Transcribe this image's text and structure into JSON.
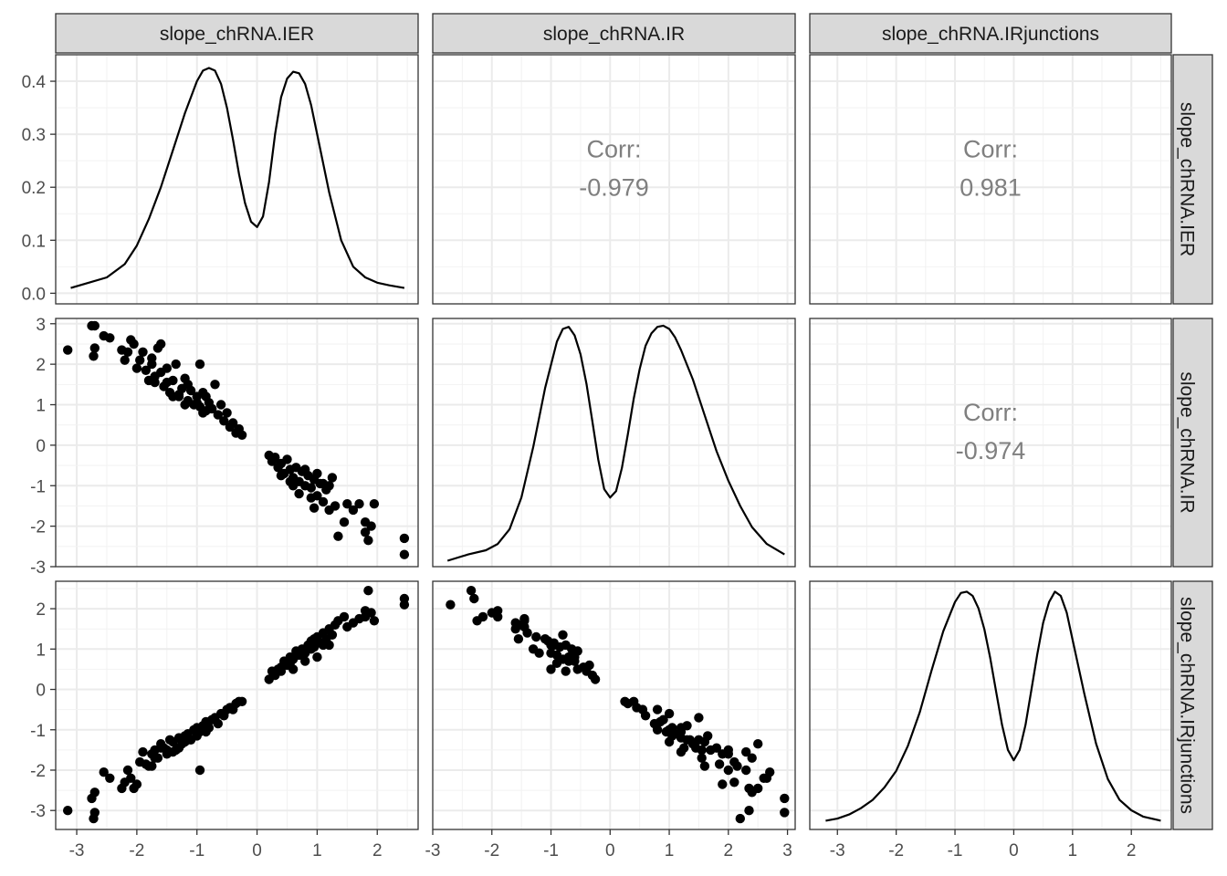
{
  "variables": [
    "slope_chRNA.IER",
    "slope_chRNA.IR",
    "slope_chRNA.IRjunctions"
  ],
  "chart_data": {
    "type": "scatter",
    "subtype": "pairs-matrix",
    "grid": true,
    "density_y_ticks": [
      0.0,
      0.1,
      0.2,
      0.3,
      0.4
    ],
    "density_y_tick_labels": [
      "0.0",
      "0.1",
      "0.2",
      "0.3",
      "0.4"
    ],
    "columns": [
      {
        "name": "slope_chRNA.IER",
        "xlim": [
          -3.35,
          2.68
        ],
        "x_ticks": [
          -3,
          -2,
          -1,
          0,
          1,
          2
        ],
        "x_tick_labels": [
          "-3",
          "-2",
          "-1",
          "0",
          "1",
          "2"
        ]
      },
      {
        "name": "slope_chRNA.IR",
        "xlim": [
          -3.0,
          3.13
        ],
        "x_ticks": [
          -3,
          -2,
          -1,
          0,
          1,
          2,
          3
        ],
        "x_tick_labels": [
          "-3",
          "-2",
          "-1",
          "0",
          "1",
          "2",
          "3"
        ]
      },
      {
        "name": "slope_chRNA.IRjunctions",
        "xlim": [
          -3.47,
          2.68
        ],
        "x_ticks": [
          -3,
          -2,
          -1,
          0,
          1,
          2
        ],
        "x_tick_labels": [
          "-3",
          "-2",
          "-1",
          "0",
          "1",
          "2"
        ]
      }
    ],
    "rows": [
      {
        "name": "slope_chRNA.IER",
        "ylim": [
          -0.02,
          0.45
        ]
      },
      {
        "name": "slope_chRNA.IR",
        "ylim": [
          -3.0,
          3.13
        ],
        "y_ticks": [
          -3,
          -2,
          -1,
          0,
          1,
          2,
          3
        ],
        "y_tick_labels": [
          "-3",
          "-2",
          "-1",
          "0",
          "1",
          "2",
          "3"
        ]
      },
      {
        "name": "slope_chRNA.IRjunctions",
        "ylim": [
          -3.47,
          2.68
        ],
        "y_ticks": [
          -3,
          -2,
          -1,
          0,
          1,
          2
        ],
        "y_tick_labels": [
          "-3",
          "-2",
          "-1",
          "0",
          "1",
          "2"
        ]
      }
    ],
    "densities": [
      {
        "variable": "slope_chRNA.IER",
        "ylim": [
          -0.02,
          0.45
        ],
        "x": [
          -3.1,
          -2.8,
          -2.5,
          -2.2,
          -2.0,
          -1.8,
          -1.6,
          -1.4,
          -1.2,
          -1.0,
          -0.9,
          -0.8,
          -0.7,
          -0.6,
          -0.5,
          -0.4,
          -0.3,
          -0.2,
          -0.1,
          0.0,
          0.1,
          0.2,
          0.3,
          0.4,
          0.5,
          0.6,
          0.7,
          0.8,
          0.9,
          1.0,
          1.2,
          1.4,
          1.6,
          1.8,
          2.0,
          2.2,
          2.45
        ],
        "y": [
          0.01,
          0.02,
          0.03,
          0.055,
          0.09,
          0.14,
          0.2,
          0.27,
          0.34,
          0.4,
          0.42,
          0.425,
          0.42,
          0.395,
          0.35,
          0.29,
          0.225,
          0.17,
          0.135,
          0.125,
          0.145,
          0.21,
          0.3,
          0.37,
          0.405,
          0.418,
          0.415,
          0.395,
          0.355,
          0.3,
          0.19,
          0.1,
          0.05,
          0.03,
          0.02,
          0.015,
          0.01
        ]
      },
      {
        "variable": "slope_chRNA.IR",
        "ylim": [
          -2.74,
          3.15
        ],
        "x": [
          -2.75,
          -2.4,
          -2.1,
          -1.9,
          -1.7,
          -1.5,
          -1.3,
          -1.1,
          -0.9,
          -0.8,
          -0.7,
          -0.6,
          -0.5,
          -0.4,
          -0.3,
          -0.2,
          -0.1,
          0.0,
          0.1,
          0.2,
          0.3,
          0.4,
          0.5,
          0.6,
          0.7,
          0.8,
          0.9,
          1.0,
          1.1,
          1.2,
          1.4,
          1.6,
          1.8,
          2.0,
          2.2,
          2.4,
          2.65,
          2.95
        ],
        "y": [
          -2.6,
          -2.45,
          -2.35,
          -2.2,
          -1.85,
          -1.1,
          0.1,
          1.5,
          2.6,
          2.9,
          2.95,
          2.75,
          2.3,
          1.6,
          0.7,
          -0.2,
          -0.9,
          -1.1,
          -0.95,
          -0.4,
          0.4,
          1.25,
          1.95,
          2.5,
          2.8,
          2.95,
          2.98,
          2.9,
          2.7,
          2.4,
          1.7,
          0.85,
          0.0,
          -0.7,
          -1.3,
          -1.8,
          -2.2,
          -2.45
        ]
      },
      {
        "variable": "slope_chRNA.IRjunctions",
        "ylim": [
          -3.26,
          2.7
        ],
        "x": [
          -3.2,
          -3.0,
          -2.8,
          -2.6,
          -2.4,
          -2.2,
          -2.0,
          -1.8,
          -1.6,
          -1.4,
          -1.2,
          -1.0,
          -0.9,
          -0.8,
          -0.7,
          -0.6,
          -0.5,
          -0.4,
          -0.3,
          -0.2,
          -0.1,
          0.0,
          0.1,
          0.2,
          0.3,
          0.4,
          0.5,
          0.6,
          0.7,
          0.8,
          0.9,
          1.0,
          1.2,
          1.4,
          1.6,
          1.8,
          2.0,
          2.2,
          2.5
        ],
        "y": [
          -3.05,
          -3.0,
          -2.9,
          -2.75,
          -2.55,
          -2.25,
          -1.85,
          -1.25,
          -0.45,
          0.55,
          1.5,
          2.2,
          2.42,
          2.45,
          2.35,
          2.05,
          1.55,
          0.85,
          0.05,
          -0.75,
          -1.35,
          -1.6,
          -1.35,
          -0.75,
          0.1,
          0.95,
          1.7,
          2.2,
          2.45,
          2.35,
          1.95,
          1.3,
          0.0,
          -1.2,
          -2.05,
          -2.55,
          -2.8,
          -2.95,
          -3.05
        ]
      }
    ],
    "correlations": [
      {
        "x": "slope_chRNA.IR",
        "y": "slope_chRNA.IER",
        "label": "Corr:",
        "value": "-0.979"
      },
      {
        "x": "slope_chRNA.IRjunctions",
        "y": "slope_chRNA.IER",
        "label": "Corr:",
        "value": "0.981"
      },
      {
        "x": "slope_chRNA.IRjunctions",
        "y": "slope_chRNA.IR",
        "label": "Corr:",
        "value": "-0.974"
      }
    ],
    "scatter_points": {
      "note_columns": [
        "slope_chRNA.IER",
        "slope_chRNA.IR",
        "slope_chRNA.IRjunctions"
      ],
      "points": [
        [
          -3.15,
          2.35,
          -3.0
        ],
        [
          -2.75,
          2.95,
          -2.7
        ],
        [
          -2.7,
          2.95,
          -3.05
        ],
        [
          -2.72,
          2.2,
          -3.2
        ],
        [
          -2.7,
          2.4,
          -2.55
        ],
        [
          -2.55,
          2.7,
          -2.05
        ],
        [
          -2.45,
          2.65,
          -2.2
        ],
        [
          -2.25,
          2.35,
          -2.45
        ],
        [
          -2.2,
          2.1,
          -2.3
        ],
        [
          -2.15,
          2.3,
          -2.0
        ],
        [
          -2.1,
          2.6,
          -2.2
        ],
        [
          -2.05,
          2.5,
          -2.45
        ],
        [
          -2.0,
          1.9,
          -2.35
        ],
        [
          -1.95,
          2.1,
          -1.8
        ],
        [
          -1.9,
          2.3,
          -1.55
        ],
        [
          -1.85,
          1.85,
          -1.85
        ],
        [
          -1.8,
          1.6,
          -1.9
        ],
        [
          -1.75,
          2.0,
          -1.6
        ],
        [
          -1.7,
          1.7,
          -1.5
        ],
        [
          -1.65,
          2.4,
          -1.7
        ],
        [
          -1.6,
          2.5,
          -1.35
        ],
        [
          -1.55,
          1.45,
          -1.45
        ],
        [
          -1.5,
          1.9,
          -1.6
        ],
        [
          -1.45,
          1.3,
          -1.25
        ],
        [
          -1.4,
          1.6,
          -1.3
        ],
        [
          -1.35,
          2.0,
          -1.5
        ],
        [
          -1.3,
          1.2,
          -1.2
        ],
        [
          -1.25,
          1.4,
          -1.35
        ],
        [
          -1.2,
          1.65,
          -1.15
        ],
        [
          -1.15,
          1.1,
          -1.1
        ],
        [
          -1.1,
          1.35,
          -1.25
        ],
        [
          -1.05,
          1.0,
          -1.0
        ],
        [
          -1.0,
          1.2,
          -0.95
        ],
        [
          -0.95,
          0.95,
          -1.05
        ],
        [
          -0.9,
          1.3,
          -0.9
        ],
        [
          -0.85,
          0.85,
          -0.8
        ],
        [
          -0.8,
          1.05,
          -0.95
        ],
        [
          -0.75,
          0.9,
          -0.75
        ],
        [
          -0.7,
          1.5,
          -0.7
        ],
        [
          -0.65,
          0.75,
          -0.85
        ],
        [
          -0.6,
          1.0,
          -0.6
        ],
        [
          -0.55,
          0.6,
          -0.65
        ],
        [
          -0.5,
          0.8,
          -0.5
        ],
        [
          -0.45,
          0.45,
          -0.45
        ],
        [
          -0.4,
          0.55,
          -0.5
        ],
        [
          -0.35,
          0.3,
          -0.35
        ],
        [
          -0.3,
          0.4,
          -0.3
        ],
        [
          -0.25,
          0.25,
          -0.3
        ],
        [
          -1.7,
          1.55,
          -1.7
        ],
        [
          -1.5,
          1.55,
          -1.5
        ],
        [
          -1.3,
          1.25,
          -1.45
        ],
        [
          -1.2,
          1.0,
          -1.3
        ],
        [
          -1.0,
          1.05,
          -1.15
        ],
        [
          -0.9,
          0.8,
          -1.0
        ],
        [
          -0.85,
          1.2,
          -1.05
        ],
        [
          -1.4,
          1.2,
          -1.55
        ],
        [
          -1.6,
          1.8,
          -1.45
        ],
        [
          -1.75,
          2.15,
          -1.9
        ],
        [
          -0.95,
          2.0,
          -2.0
        ],
        [
          -1.15,
          1.5,
          -1.25
        ],
        [
          0.2,
          -0.25,
          0.25
        ],
        [
          0.25,
          -0.4,
          0.45
        ],
        [
          0.3,
          -0.3,
          0.35
        ],
        [
          0.35,
          -0.55,
          0.5
        ],
        [
          0.4,
          -0.45,
          0.55
        ],
        [
          0.45,
          -0.7,
          0.7
        ],
        [
          0.5,
          -0.35,
          0.6
        ],
        [
          0.55,
          -0.6,
          0.8
        ],
        [
          0.6,
          -0.8,
          0.75
        ],
        [
          0.65,
          -0.55,
          0.95
        ],
        [
          0.7,
          -0.9,
          0.85
        ],
        [
          0.75,
          -0.65,
          1.0
        ],
        [
          0.8,
          -1.0,
          0.9
        ],
        [
          0.85,
          -0.75,
          1.1
        ],
        [
          0.9,
          -1.05,
          1.2
        ],
        [
          0.95,
          -0.85,
          1.05
        ],
        [
          1.0,
          -1.25,
          1.3
        ],
        [
          1.05,
          -0.95,
          1.15
        ],
        [
          1.1,
          -1.4,
          1.4
        ],
        [
          1.15,
          -1.1,
          1.25
        ],
        [
          1.2,
          -1.6,
          1.5
        ],
        [
          1.25,
          -0.8,
          1.35
        ],
        [
          1.3,
          -1.5,
          1.6
        ],
        [
          1.35,
          -2.25,
          1.7
        ],
        [
          1.45,
          -1.9,
          1.8
        ],
        [
          1.5,
          -1.45,
          1.55
        ],
        [
          1.6,
          -1.6,
          1.65
        ],
        [
          1.7,
          -1.45,
          1.75
        ],
        [
          1.8,
          -2.15,
          1.8
        ],
        [
          1.85,
          -2.35,
          2.45
        ],
        [
          1.9,
          -2.0,
          1.9
        ],
        [
          1.95,
          -1.45,
          1.7
        ],
        [
          2.45,
          -2.3,
          2.25
        ],
        [
          2.45,
          -2.7,
          2.1
        ],
        [
          1.8,
          -1.9,
          1.95
        ],
        [
          0.55,
          -0.9,
          0.65
        ],
        [
          0.7,
          -1.2,
          0.9
        ],
        [
          0.9,
          -1.3,
          1.0
        ],
        [
          1.0,
          -0.7,
          0.8
        ],
        [
          0.6,
          -1.0,
          0.5
        ],
        [
          0.4,
          -0.75,
          0.45
        ],
        [
          0.8,
          -0.6,
          0.7
        ],
        [
          1.1,
          -0.95,
          1.1
        ],
        [
          0.95,
          -1.55,
          1.25
        ],
        [
          1.2,
          -1.0,
          1.1
        ]
      ]
    }
  }
}
